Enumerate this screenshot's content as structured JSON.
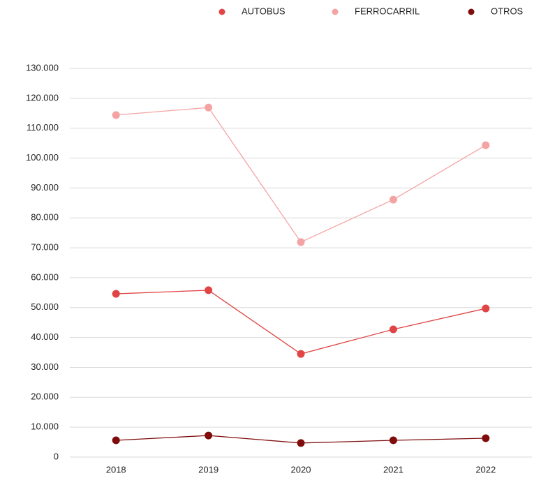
{
  "chart_data": {
    "type": "line",
    "categories": [
      "2018",
      "2019",
      "2020",
      "2021",
      "2022"
    ],
    "series": [
      {
        "name": "AUTOBUS",
        "color": "#e04444",
        "values": [
          54600,
          55800,
          34500,
          42700,
          49700
        ]
      },
      {
        "name": "FERROCARRIL",
        "color": "#f4a3a3",
        "values": [
          114400,
          116900,
          71900,
          86100,
          104300
        ]
      },
      {
        "name": "OTROS",
        "color": "#7f0b0b",
        "values": [
          5600,
          7200,
          4700,
          5600,
          6300
        ]
      }
    ],
    "ylim": [
      0,
      130000
    ],
    "yticks": [
      0,
      {
        "value": 10000,
        "label": "10.000"
      },
      {
        "value": 20000,
        "label": "20.000"
      },
      {
        "value": 30000,
        "label": "30.000"
      },
      {
        "value": 40000,
        "label": "40.000"
      },
      {
        "value": 50000,
        "label": "50.000"
      },
      {
        "value": 60000,
        "label": "60.000"
      },
      {
        "value": 70000,
        "label": "70.000"
      },
      {
        "value": 80000,
        "label": "80.000"
      },
      {
        "value": 90000,
        "label": "90.000"
      },
      {
        "value": 100000,
        "label": "100.000"
      },
      {
        "value": 110000,
        "label": "110.000"
      },
      {
        "value": 120000,
        "label": "120.000"
      },
      {
        "value": 130000,
        "label": "130.000"
      }
    ],
    "grid": true,
    "legend": "top"
  }
}
